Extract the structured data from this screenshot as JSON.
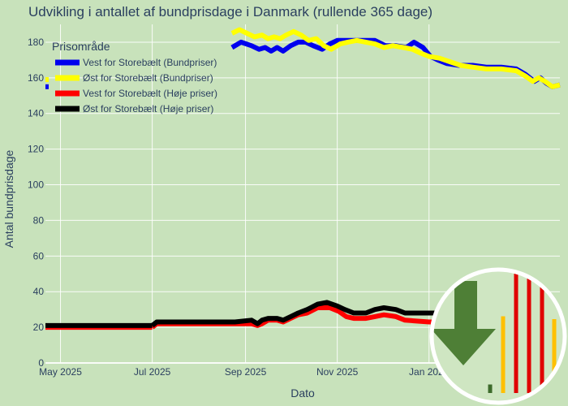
{
  "chart_data": {
    "type": "line",
    "title": "Udvikling i antallet af bundprisdage i Danmark (rullende 365 dage)",
    "xlabel": "Dato",
    "ylabel": "Antal bundprisdage",
    "ylim": [
      0,
      190
    ],
    "yticks": [
      0,
      20,
      40,
      60,
      80,
      100,
      120,
      140,
      160,
      180
    ],
    "xticks": [
      {
        "date": "2025-05-01",
        "label": "May 2025"
      },
      {
        "date": "2025-07-01",
        "label": "Jul 2025"
      },
      {
        "date": "2025-09-01",
        "label": "Sep 2025"
      },
      {
        "date": "2025-11-01",
        "label": "Nov 2025"
      },
      {
        "date": "2026-01-01",
        "label": "Jan 2026"
      }
    ],
    "xlim": [
      "2025-04-21",
      "2026-03-29"
    ],
    "legend": {
      "title": "Prisområde",
      "placement": "top-left"
    },
    "series": [
      {
        "name": "Vest for Storebælt (Bundpriser)",
        "color": "#0000ee",
        "width": 6,
        "points": [
          [
            "2025-04-21",
            155
          ],
          [
            "2025-08-23",
            177
          ],
          [
            "2025-08-29",
            180
          ],
          [
            "2025-09-05",
            178
          ],
          [
            "2025-09-10",
            176
          ],
          [
            "2025-09-14",
            177
          ],
          [
            "2025-09-18",
            175
          ],
          [
            "2025-09-22",
            177
          ],
          [
            "2025-09-26",
            175
          ],
          [
            "2025-10-01",
            178
          ],
          [
            "2025-10-06",
            180
          ],
          [
            "2025-10-11",
            180
          ],
          [
            "2025-10-16",
            178
          ],
          [
            "2025-10-22",
            176
          ],
          [
            "2025-10-27",
            179
          ],
          [
            "2025-11-01",
            181
          ],
          [
            "2025-11-09",
            181
          ],
          [
            "2025-11-18",
            181
          ],
          [
            "2025-11-26",
            181
          ],
          [
            "2025-12-03",
            178
          ],
          [
            "2025-12-10",
            178
          ],
          [
            "2025-12-17",
            177
          ],
          [
            "2025-12-22",
            180
          ],
          [
            "2025-12-28",
            177
          ],
          [
            "2026-01-02",
            172
          ],
          [
            "2026-01-07",
            170
          ],
          [
            "2026-01-13",
            168
          ],
          [
            "2026-01-21",
            167
          ],
          [
            "2026-01-30",
            167
          ],
          [
            "2026-02-08",
            166
          ],
          [
            "2026-02-18",
            166
          ],
          [
            "2026-02-28",
            165
          ],
          [
            "2026-03-06",
            162
          ],
          [
            "2026-03-12",
            158
          ],
          [
            "2026-03-16",
            160
          ],
          [
            "2026-03-20",
            157
          ],
          [
            "2026-03-24",
            155
          ],
          [
            "2026-03-29",
            156
          ]
        ]
      },
      {
        "name": "Øst for Storebælt (Bundpriser)",
        "color": "#ffff00",
        "width": 6,
        "points": [
          [
            "2025-04-21",
            159
          ],
          [
            "2025-08-23",
            185
          ],
          [
            "2025-08-28",
            187
          ],
          [
            "2025-09-02",
            185
          ],
          [
            "2025-09-07",
            183
          ],
          [
            "2025-09-12",
            184
          ],
          [
            "2025-09-16",
            182
          ],
          [
            "2025-09-20",
            183
          ],
          [
            "2025-09-24",
            182
          ],
          [
            "2025-09-28",
            184
          ],
          [
            "2025-10-03",
            186
          ],
          [
            "2025-10-08",
            184
          ],
          [
            "2025-10-13",
            181
          ],
          [
            "2025-10-18",
            182
          ],
          [
            "2025-10-23",
            178
          ],
          [
            "2025-10-28",
            176
          ],
          [
            "2025-11-03",
            179
          ],
          [
            "2025-11-08",
            180
          ],
          [
            "2025-11-14",
            181
          ],
          [
            "2025-11-20",
            180
          ],
          [
            "2025-11-26",
            179
          ],
          [
            "2025-12-02",
            177
          ],
          [
            "2025-12-08",
            178
          ],
          [
            "2025-12-15",
            177
          ],
          [
            "2025-12-21",
            176
          ],
          [
            "2025-12-26",
            174
          ],
          [
            "2026-01-01",
            172
          ],
          [
            "2026-01-08",
            171
          ],
          [
            "2026-01-15",
            169
          ],
          [
            "2026-01-22",
            167
          ],
          [
            "2026-01-30",
            166
          ],
          [
            "2026-02-08",
            165
          ],
          [
            "2026-02-18",
            165
          ],
          [
            "2026-02-28",
            164
          ],
          [
            "2026-03-06",
            161
          ],
          [
            "2026-03-11",
            158
          ],
          [
            "2026-03-15",
            160
          ],
          [
            "2026-03-19",
            158
          ],
          [
            "2026-03-24",
            155
          ],
          [
            "2026-03-29",
            156
          ]
        ]
      },
      {
        "name": "Vest for Storebælt (Høje priser)",
        "color": "#ff0000",
        "width": 6,
        "points": [
          [
            "2025-04-21",
            20
          ],
          [
            "2025-07-01",
            20
          ],
          [
            "2025-07-04",
            22
          ],
          [
            "2025-08-25",
            22
          ],
          [
            "2025-09-05",
            22
          ],
          [
            "2025-09-09",
            21
          ],
          [
            "2025-09-12",
            22
          ],
          [
            "2025-09-16",
            24
          ],
          [
            "2025-09-22",
            24
          ],
          [
            "2025-09-26",
            23
          ],
          [
            "2025-10-01",
            25
          ],
          [
            "2025-10-06",
            27
          ],
          [
            "2025-10-12",
            28
          ],
          [
            "2025-10-19",
            31
          ],
          [
            "2025-10-27",
            31
          ],
          [
            "2025-11-02",
            29
          ],
          [
            "2025-11-07",
            26
          ],
          [
            "2025-11-12",
            25
          ],
          [
            "2025-11-20",
            25
          ],
          [
            "2025-11-26",
            26
          ],
          [
            "2025-12-02",
            27
          ],
          [
            "2025-12-10",
            26
          ],
          [
            "2025-12-16",
            24
          ],
          [
            "2026-01-01",
            23
          ],
          [
            "2026-01-20",
            23
          ]
        ]
      },
      {
        "name": "Øst for Storebælt (Høje priser)",
        "color": "#000000",
        "width": 6,
        "points": [
          [
            "2025-04-21",
            21
          ],
          [
            "2025-07-01",
            21
          ],
          [
            "2025-07-04",
            23
          ],
          [
            "2025-08-25",
            23
          ],
          [
            "2025-09-05",
            24
          ],
          [
            "2025-09-09",
            22
          ],
          [
            "2025-09-12",
            24
          ],
          [
            "2025-09-16",
            25
          ],
          [
            "2025-09-22",
            25
          ],
          [
            "2025-09-26",
            24
          ],
          [
            "2025-10-01",
            26
          ],
          [
            "2025-10-06",
            28
          ],
          [
            "2025-10-12",
            30
          ],
          [
            "2025-10-19",
            33
          ],
          [
            "2025-10-25",
            34
          ],
          [
            "2025-11-01",
            32
          ],
          [
            "2025-11-06",
            30
          ],
          [
            "2025-11-12",
            28
          ],
          [
            "2025-11-20",
            28
          ],
          [
            "2025-11-26",
            30
          ],
          [
            "2025-12-02",
            31
          ],
          [
            "2025-12-10",
            30
          ],
          [
            "2025-12-16",
            28
          ],
          [
            "2026-01-01",
            28
          ],
          [
            "2026-01-20",
            28
          ]
        ]
      }
    ]
  },
  "overlay": {
    "icon": "green-down-arrow-with-bar-chart-icon",
    "circle_border_color": "#ffffff",
    "circle_fill": "#cfe6c2",
    "arrow_color": "#4e7f36",
    "bars": [
      {
        "color": "#3d6b2b",
        "value": 3
      },
      {
        "color": "#ffc000",
        "value": 27
      },
      {
        "color": "#e00000",
        "value": 42
      },
      {
        "color": "#e00000",
        "value": 44
      },
      {
        "color": "#e00000",
        "value": 41
      },
      {
        "color": "#ffc000",
        "value": 26
      }
    ]
  }
}
